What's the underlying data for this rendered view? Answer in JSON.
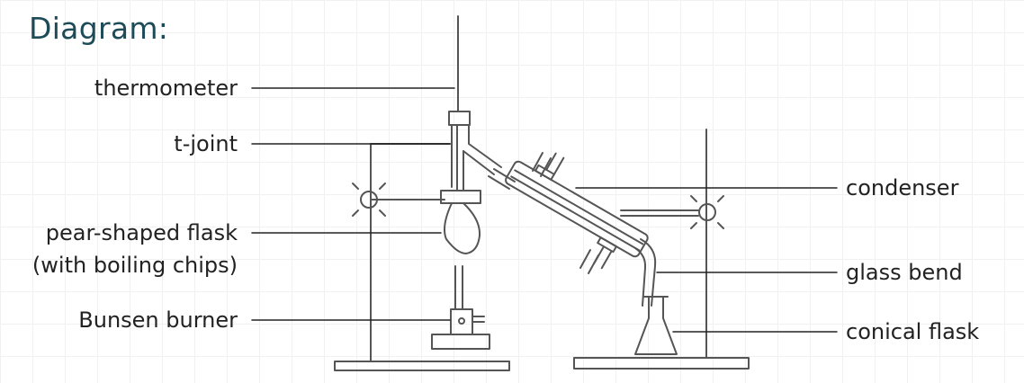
{
  "heading": "Diagram:",
  "labels": {
    "thermometer": "thermometer",
    "t_joint": "t-joint",
    "flask_line1": "pear-shaped flask",
    "flask_line2": "(with boiling chips)",
    "burner": "Bunsen burner",
    "condenser": "condenser",
    "glass_bend": "glass bend",
    "conical_flask": "conical flask"
  }
}
